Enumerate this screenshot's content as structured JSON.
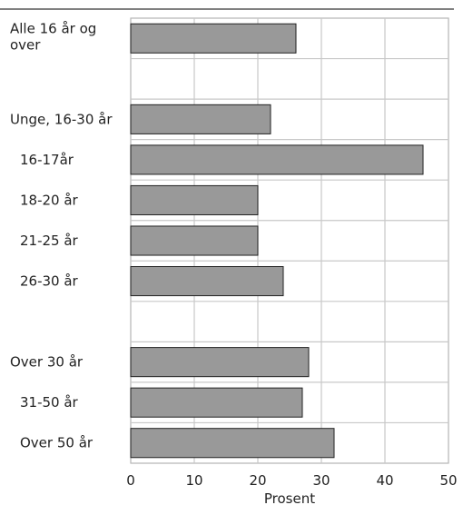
{
  "chart_data": {
    "type": "bar",
    "orientation": "horizontal",
    "xlabel": "Prosent",
    "xlim": [
      0,
      50
    ],
    "xticks": [
      0,
      10,
      20,
      30,
      40,
      50
    ],
    "grid": true,
    "bar_color": "#999999",
    "categories": [
      {
        "label": "Alle 16 år og over",
        "value": 26,
        "indent": false
      },
      {
        "label": "",
        "value": null,
        "indent": false
      },
      {
        "label": "Unge, 16-30 år",
        "value": 22,
        "indent": false
      },
      {
        "label": "16-17år",
        "value": 46,
        "indent": true
      },
      {
        "label": "18-20 år",
        "value": 20,
        "indent": true
      },
      {
        "label": "21-25 år",
        "value": 20,
        "indent": true
      },
      {
        "label": "26-30 år",
        "value": 24,
        "indent": true
      },
      {
        "label": "",
        "value": null,
        "indent": false
      },
      {
        "label": "Over 30 år",
        "value": 28,
        "indent": false
      },
      {
        "label": "31-50 år",
        "value": 27,
        "indent": true
      },
      {
        "label": "Over 50 år",
        "value": 32,
        "indent": true
      }
    ]
  }
}
